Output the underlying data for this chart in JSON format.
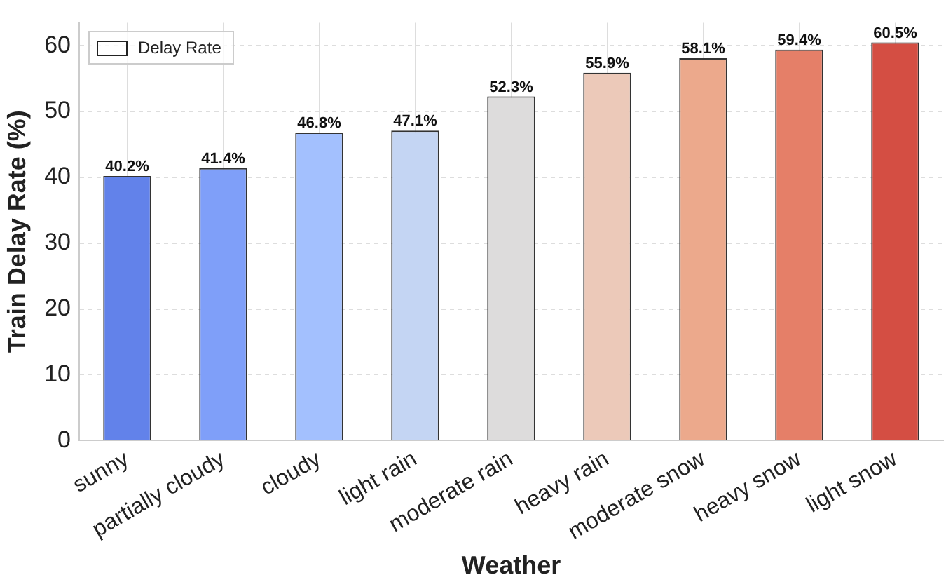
{
  "chart_data": {
    "type": "bar",
    "xlabel": "Weather",
    "ylabel": "Train Delay Rate (%)",
    "categories": [
      "sunny",
      "partially cloudy",
      "cloudy",
      "light rain",
      "moderate rain",
      "heavy rain",
      "moderate snow",
      "heavy snow",
      "light snow"
    ],
    "series": [
      {
        "name": "Delay Rate",
        "values": [
          40.2,
          41.4,
          46.8,
          47.1,
          52.3,
          55.9,
          58.1,
          59.4,
          60.5
        ],
        "colors": [
          "#6282ea",
          "#7f9ff9",
          "#a3c0fe",
          "#c4d5f3",
          "#dddcdc",
          "#ecc9b9",
          "#eca98c",
          "#e57f68",
          "#d44e43"
        ],
        "value_labels": [
          "40.2%",
          "41.4%",
          "46.8%",
          "47.1%",
          "52.3%",
          "55.9%",
          "58.1%",
          "59.4%",
          "60.5%"
        ]
      }
    ],
    "ylim": [
      0,
      63.5
    ],
    "yticks": [
      0,
      10,
      20,
      30,
      40,
      50,
      60
    ],
    "grid": true,
    "legend": "top left"
  }
}
